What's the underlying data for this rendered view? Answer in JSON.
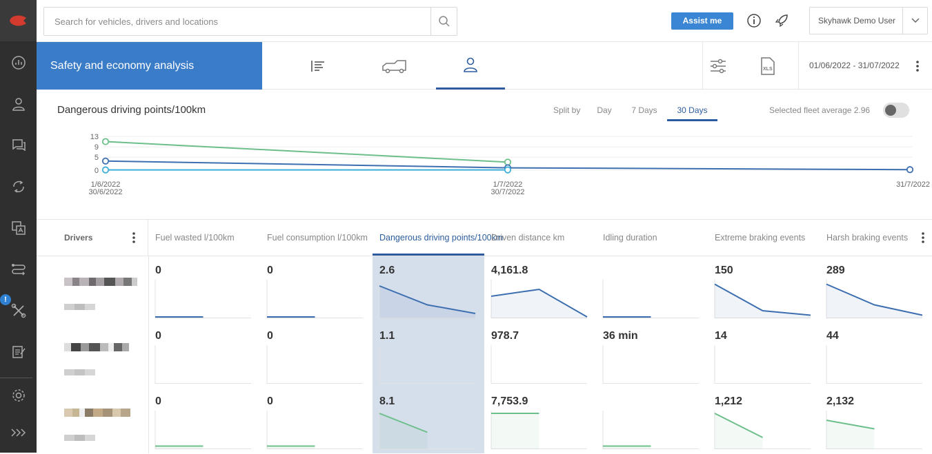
{
  "search": {
    "placeholder": "Search for vehicles, drivers and locations"
  },
  "topbar": {
    "assist_label": "Assist me",
    "user_name": "Skyhawk Demo User"
  },
  "sidebar": {
    "alert_badge": "!",
    "items": [
      "dashboard-icon",
      "driver-icon",
      "chat-icon",
      "sync-icon",
      "translate-icon",
      "route-icon",
      "tools-icon",
      "reports-icon",
      "settings-icon",
      "expand-icon"
    ]
  },
  "header": {
    "title": "Safety and economy analysis",
    "date_range": "01/06/2022 - 31/07/2022",
    "view_tabs": [
      "list-icon",
      "vehicle-icon",
      "driver-icon"
    ],
    "active_view": "driver-icon"
  },
  "chart": {
    "title": "Dangerous driving points/100km",
    "split_label": "Split by",
    "split_options": [
      "Day",
      "7 Days",
      "30 Days"
    ],
    "active_split": "30 Days",
    "fleet_average_label": "Selected fleet average 2.96",
    "y_ticks": [
      "13",
      "9",
      "5",
      "0"
    ],
    "x_ticks": [
      {
        "line1": "1/6/2022",
        "line2": "30/6/2022"
      },
      {
        "line1": "1/7/2022",
        "line2": "30/7/2022"
      },
      {
        "line1": "31/7/2022",
        "line2": ""
      }
    ]
  },
  "chart_data": {
    "type": "line",
    "x": [
      "1/6/2022 - 30/6/2022",
      "1/7/2022 - 30/7/2022",
      "31/7/2022"
    ],
    "series": [
      {
        "values": [
          11.0,
          3.1,
          null
        ],
        "color": "#6cbf8a"
      },
      {
        "values": [
          3.5,
          0.9,
          0.2
        ],
        "color": "#3d6eb0"
      },
      {
        "values": [
          0.1,
          0.1,
          null
        ],
        "color": "#3aaed8"
      }
    ],
    "ylim": [
      0,
      13
    ],
    "grid": true,
    "title": "Dangerous driving points/100km"
  },
  "table": {
    "drivers_header": "Drivers",
    "columns": [
      "Fuel wasted l/100km",
      "Fuel consumption l/100km",
      "Dangerous driving points/100km",
      "Driven distance km",
      "Idling duration",
      "Extreme braking events",
      "Harsh braking events"
    ],
    "active_column": 2,
    "rows": [
      {
        "color": "#3d6eb0",
        "values": [
          "0",
          "0",
          "2.6",
          "4,161.8",
          "",
          "150",
          "289"
        ]
      },
      {
        "color": "#6cbf8a",
        "values": [
          "0",
          "0",
          "1.1",
          "978.7",
          "36 min",
          "14",
          "44"
        ]
      },
      {
        "color": "#6cbf8a",
        "values": [
          "0",
          "0",
          "8.1",
          "7,753.9",
          "",
          "1,212",
          "2,132"
        ]
      }
    ],
    "sparklines": [
      [
        [
          0,
          0
        ],
        [
          0,
          0
        ],
        [
          0.9,
          0.35,
          0.1
        ],
        [
          0.6,
          0.8,
          0.0
        ],
        [
          0,
          0
        ],
        [
          0.95,
          0.18,
          0.05
        ],
        [
          0.95,
          0.35,
          0.05
        ]
      ],
      [
        [],
        [],
        [],
        [],
        [],
        [],
        []
      ],
      [
        [
          0.05,
          0.05
        ],
        [
          0.05,
          0.05
        ],
        [
          1.0,
          0.45
        ],
        [
          1.0,
          1.0
        ],
        [
          0.05,
          0.05
        ],
        [
          1.0,
          0.3
        ],
        [
          0.8,
          0.55
        ]
      ]
    ]
  }
}
